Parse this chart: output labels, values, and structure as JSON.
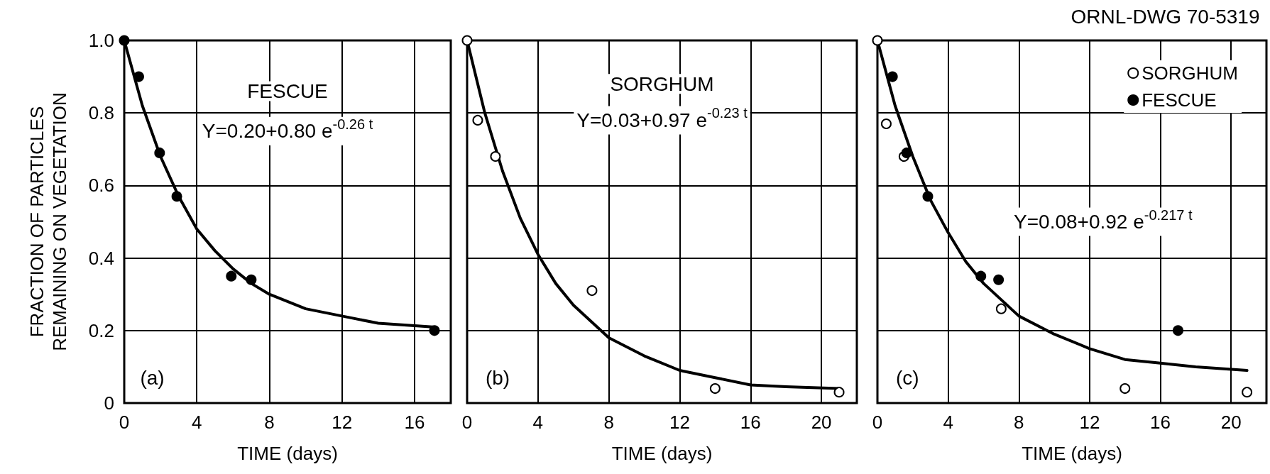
{
  "chart_data": [
    {
      "type": "scatter",
      "xlabel": "TIME (days)",
      "ylabel": "FRACTION OF PARTICLES\nREMAINING ON VEGETATION",
      "annotations": [
        "FESCUE",
        "Y=0.20+0.80 e$^{-0.26 t}$",
        "(a)"
      ],
      "xlim": [
        0,
        18
      ],
      "xticks": [
        0,
        4,
        8,
        12,
        16
      ],
      "ylim": [
        0,
        1
      ],
      "yticks": [
        0,
        0.2,
        0.4,
        0.6,
        0.8,
        {
          "value": 1,
          "label": "1.0"
        }
      ],
      "grid": true,
      "marker": "circle",
      "legend": false,
      "series": [
        {
          "color": "#000000",
          "x": [
            0,
            0.8,
            1.95,
            2.9,
            5.9,
            7,
            17.1
          ],
          "values": [
            1.0,
            0.9,
            0.69,
            0.57,
            0.35,
            0.34,
            0.2
          ]
        },
        {
          "type": "line",
          "color": "#000000",
          "marker": "none",
          "x": [
            0,
            1,
            2,
            3,
            4,
            5,
            6,
            7,
            8,
            10,
            12,
            14,
            17
          ],
          "values": [
            1.0,
            0.82,
            0.68,
            0.57,
            0.48,
            0.42,
            0.37,
            0.33,
            0.3,
            0.26,
            0.24,
            0.22,
            0.21
          ]
        }
      ]
    },
    {
      "type": "scatter",
      "xlabel": "TIME (days)",
      "annotations": [
        "SORGHUM",
        "Y=0.03+0.97 e$^{-0.23 t}$",
        "(b)"
      ],
      "xlim": [
        0,
        22
      ],
      "xticks": [
        0,
        4,
        8,
        12,
        16,
        20
      ],
      "ylim": [
        0,
        1
      ],
      "yticks": [
        0,
        0.2,
        0.4,
        0.6,
        0.8,
        1
      ],
      "grid": true,
      "marker": "circle",
      "legend": false,
      "tick_labels": "x",
      "series": [
        {
          "color": "#ffffff",
          "x": [
            0,
            0.6,
            1.6,
            7.05,
            14,
            21
          ],
          "values": [
            1.0,
            0.78,
            0.68,
            0.31,
            0.04,
            0.03
          ]
        },
        {
          "type": "line",
          "color": "#000000",
          "marker": "none",
          "x": [
            0,
            1,
            2,
            3,
            4,
            5,
            6,
            8,
            10,
            12,
            14,
            16,
            18,
            21
          ],
          "values": [
            1.0,
            0.8,
            0.64,
            0.51,
            0.41,
            0.33,
            0.27,
            0.18,
            0.13,
            0.09,
            0.07,
            0.05,
            0.045,
            0.04
          ]
        }
      ]
    },
    {
      "type": "scatter",
      "xlabel": "TIME (days)",
      "annotations": [
        "ORNL-DWG 70-5319",
        "Y=0.08+0.92 e$^{-0.217 t}$",
        "(c)"
      ],
      "xlim": [
        0,
        22
      ],
      "xticks": [
        0,
        4,
        8,
        12,
        16,
        20
      ],
      "ylim": [
        0,
        1
      ],
      "yticks": [
        0,
        0.2,
        0.4,
        0.6,
        0.8,
        1
      ],
      "grid": true,
      "marker": "circle",
      "legend": "top right",
      "tick_labels": "x",
      "series": [
        {
          "name": "SORGHUM",
          "color": "#ffffff",
          "x": [
            0,
            0.5,
            1.5,
            7,
            14,
            20.9
          ],
          "values": [
            1.0,
            0.77,
            0.68,
            0.26,
            0.04,
            0.03
          ]
        },
        {
          "name": "FESCUE",
          "color": "#000000",
          "x": [
            0.85,
            1.65,
            2.85,
            5.85,
            6.85,
            17
          ],
          "values": [
            0.9,
            0.69,
            0.57,
            0.35,
            0.34,
            0.2
          ]
        },
        {
          "type": "line",
          "color": "#000000",
          "marker": "none",
          "x": [
            0,
            1,
            2,
            3,
            4,
            5,
            6,
            8,
            10,
            12,
            14,
            16,
            18,
            20.9
          ],
          "values": [
            1.0,
            0.82,
            0.68,
            0.56,
            0.47,
            0.39,
            0.33,
            0.24,
            0.19,
            0.15,
            0.12,
            0.11,
            0.1,
            0.09
          ]
        }
      ]
    }
  ]
}
